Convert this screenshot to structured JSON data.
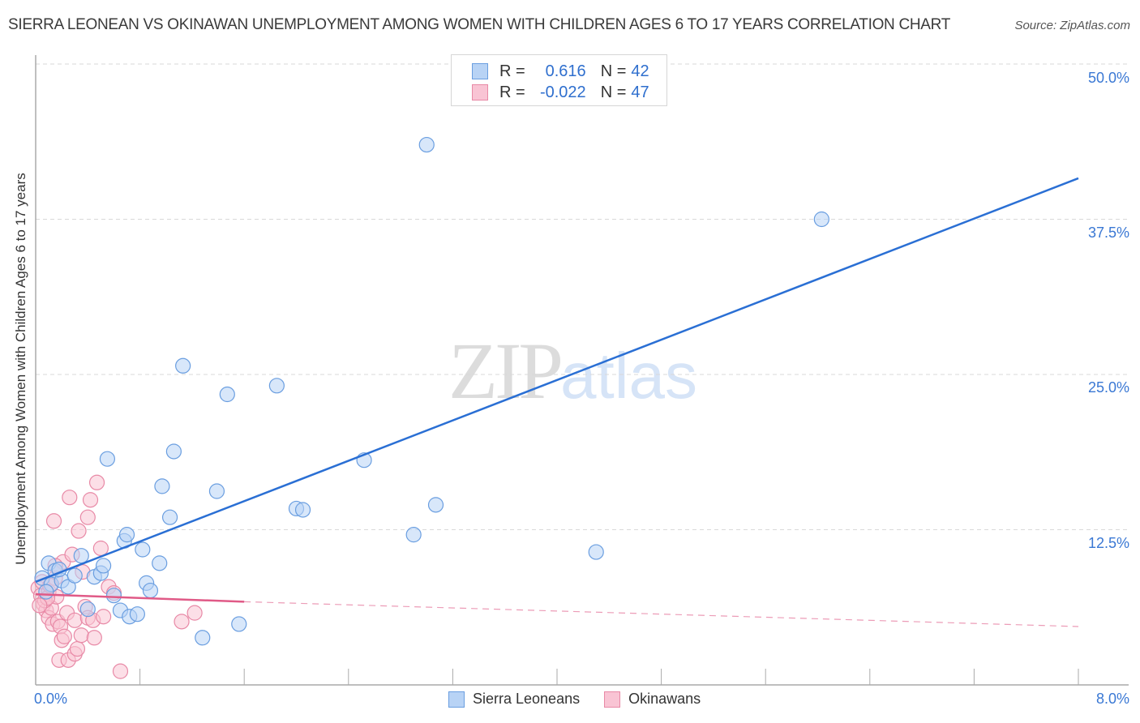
{
  "header": {
    "title": "SIERRA LEONEAN VS OKINAWAN UNEMPLOYMENT AMONG WOMEN WITH CHILDREN AGES 6 TO 17 YEARS CORRELATION CHART",
    "source": "Source: ZipAtlas.com"
  },
  "watermark": {
    "zip": "ZIP",
    "atlas": "atlas"
  },
  "legend": {
    "rows": [
      {
        "series": "Sierra Leoneans",
        "r_label": "R =",
        "r_value": "0.616",
        "n_label": "N =",
        "n_value": "42",
        "fill": "#b8d3f5",
        "stroke": "#6a9ee0"
      },
      {
        "series": "Okinawans",
        "r_label": "R =",
        "r_value": "-0.022",
        "n_label": "N =",
        "n_value": "47",
        "fill": "#f9c4d4",
        "stroke": "#e889a6"
      }
    ]
  },
  "axes": {
    "y_label": "Unemployment Among Women with Children Ages 6 to 17 years",
    "y_ticks": [
      "50.0%",
      "37.5%",
      "25.0%",
      "12.5%"
    ],
    "x_min_label": "0.0%",
    "x_max_label": "8.0%"
  },
  "bottom_legend": [
    {
      "label": "Sierra Leoneans",
      "fill": "#b8d3f5",
      "stroke": "#6a9ee0"
    },
    {
      "label": "Okinawans",
      "fill": "#f9c4d4",
      "stroke": "#e889a6"
    }
  ],
  "colors": {
    "blue_line": "#2a6fd4",
    "pink_line": "#e05a87",
    "grid": "#d9d9d9",
    "axis": "#aaaaaa",
    "tick_text": "#3a78d4"
  },
  "chart_data": {
    "type": "scatter",
    "title": "SIERRA LEONEAN VS OKINAWAN UNEMPLOYMENT AMONG WOMEN WITH CHILDREN AGES 6 TO 17 YEARS CORRELATION CHART",
    "xlabel": "",
    "ylabel": "Unemployment Among Women with Children Ages 6 to 17 years",
    "xlim": [
      0,
      8
    ],
    "ylim": [
      0,
      50
    ],
    "x_ticks": [
      "0.0%",
      "8.0%"
    ],
    "y_ticks": [
      "12.5%",
      "25.0%",
      "37.5%",
      "50.0%"
    ],
    "grid": true,
    "legend_position": "bottom",
    "series": [
      {
        "name": "Sierra Leoneans",
        "R": 0.616,
        "N": 42,
        "trend": {
          "x": [
            0,
            8
          ],
          "y": [
            8.3,
            40.8
          ],
          "style": "solid"
        },
        "points": [
          [
            0.05,
            8.6
          ],
          [
            0.1,
            9.8
          ],
          [
            0.12,
            8.1
          ],
          [
            0.15,
            9.2
          ],
          [
            0.2,
            8.4
          ],
          [
            0.25,
            7.9
          ],
          [
            0.3,
            8.8
          ],
          [
            0.35,
            10.4
          ],
          [
            0.4,
            6.1
          ],
          [
            0.45,
            8.7
          ],
          [
            0.5,
            9.0
          ],
          [
            0.52,
            9.6
          ],
          [
            0.55,
            18.2
          ],
          [
            0.6,
            7.2
          ],
          [
            0.65,
            6.0
          ],
          [
            0.68,
            11.6
          ],
          [
            0.7,
            12.1
          ],
          [
            0.72,
            5.5
          ],
          [
            0.78,
            5.7
          ],
          [
            0.82,
            10.9
          ],
          [
            0.85,
            8.2
          ],
          [
            0.88,
            7.6
          ],
          [
            0.95,
            9.8
          ],
          [
            0.97,
            16.0
          ],
          [
            1.03,
            13.5
          ],
          [
            1.06,
            18.8
          ],
          [
            1.13,
            25.7
          ],
          [
            1.28,
            3.8
          ],
          [
            1.39,
            15.6
          ],
          [
            1.47,
            23.4
          ],
          [
            1.56,
            4.9
          ],
          [
            1.85,
            24.1
          ],
          [
            2.0,
            14.2
          ],
          [
            2.05,
            14.1
          ],
          [
            2.52,
            18.1
          ],
          [
            2.9,
            12.1
          ],
          [
            3.0,
            43.5
          ],
          [
            3.07,
            14.5
          ],
          [
            4.3,
            10.7
          ],
          [
            6.03,
            37.5
          ],
          [
            0.08,
            7.5
          ],
          [
            0.18,
            9.3
          ]
        ]
      },
      {
        "name": "Okinawans",
        "R": -0.022,
        "N": 47,
        "trend": {
          "x": [
            0,
            1.6,
            8
          ],
          "y": [
            7.3,
            6.7,
            4.7
          ],
          "style": "solid to 1.6, dashed beyond"
        },
        "points": [
          [
            0.02,
            7.8
          ],
          [
            0.04,
            7.2
          ],
          [
            0.05,
            8.3
          ],
          [
            0.06,
            6.5
          ],
          [
            0.08,
            6.0
          ],
          [
            0.1,
            7.5
          ],
          [
            0.1,
            5.4
          ],
          [
            0.12,
            6.2
          ],
          [
            0.13,
            4.9
          ],
          [
            0.14,
            13.2
          ],
          [
            0.15,
            8.6
          ],
          [
            0.16,
            7.1
          ],
          [
            0.17,
            5.1
          ],
          [
            0.18,
            2.0
          ],
          [
            0.19,
            4.7
          ],
          [
            0.2,
            3.6
          ],
          [
            0.21,
            9.9
          ],
          [
            0.22,
            3.9
          ],
          [
            0.24,
            5.8
          ],
          [
            0.25,
            2.0
          ],
          [
            0.26,
            15.1
          ],
          [
            0.28,
            10.5
          ],
          [
            0.3,
            5.2
          ],
          [
            0.3,
            2.5
          ],
          [
            0.32,
            2.9
          ],
          [
            0.33,
            12.4
          ],
          [
            0.35,
            4.0
          ],
          [
            0.36,
            9.1
          ],
          [
            0.38,
            6.3
          ],
          [
            0.4,
            5.4
          ],
          [
            0.4,
            13.5
          ],
          [
            0.42,
            14.9
          ],
          [
            0.44,
            5.2
          ],
          [
            0.45,
            3.8
          ],
          [
            0.47,
            16.3
          ],
          [
            0.5,
            11.0
          ],
          [
            0.52,
            5.5
          ],
          [
            0.56,
            7.9
          ],
          [
            0.6,
            7.4
          ],
          [
            0.65,
            1.1
          ],
          [
            1.12,
            5.1
          ],
          [
            1.22,
            5.8
          ],
          [
            0.07,
            6.8
          ],
          [
            0.09,
            7.0
          ],
          [
            0.11,
            8.0
          ],
          [
            0.03,
            6.4
          ],
          [
            0.15,
            9.6
          ]
        ]
      }
    ]
  }
}
